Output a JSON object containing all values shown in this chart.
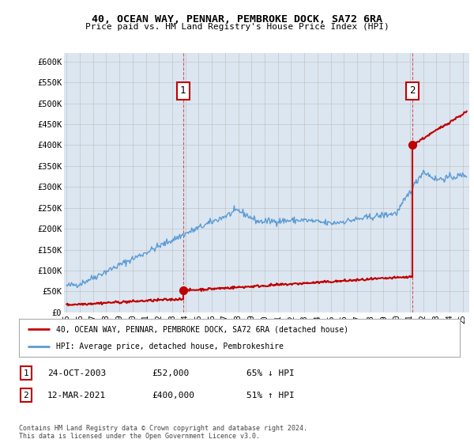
{
  "title_line1": "40, OCEAN WAY, PENNAR, PEMBROKE DOCK, SA72 6RA",
  "title_line2": "Price paid vs. HM Land Registry's House Price Index (HPI)",
  "ylabel_ticks": [
    "£0",
    "£50K",
    "£100K",
    "£150K",
    "£200K",
    "£250K",
    "£300K",
    "£350K",
    "£400K",
    "£450K",
    "£500K",
    "£550K",
    "£600K"
  ],
  "ytick_vals": [
    0,
    50000,
    100000,
    150000,
    200000,
    250000,
    300000,
    350000,
    400000,
    450000,
    500000,
    550000,
    600000
  ],
  "ylim": [
    0,
    620000
  ],
  "xlim_start": 1994.8,
  "xlim_end": 2025.5,
  "hpi_color": "#5b9bd5",
  "price_color": "#c00000",
  "chart_bg": "#dce6f1",
  "marker1_x": 2003.82,
  "marker1_y": 52000,
  "marker2_x": 2021.19,
  "marker2_y": 400000,
  "legend_label1": "40, OCEAN WAY, PENNAR, PEMBROKE DOCK, SA72 6RA (detached house)",
  "legend_label2": "HPI: Average price, detached house, Pembrokeshire",
  "table_row1": [
    "1",
    "24-OCT-2003",
    "£52,000",
    "65% ↓ HPI"
  ],
  "table_row2": [
    "2",
    "12-MAR-2021",
    "£400,000",
    "51% ↑ HPI"
  ],
  "footer": "Contains HM Land Registry data © Crown copyright and database right 2024.\nThis data is licensed under the Open Government Licence v3.0.",
  "background_color": "#ffffff",
  "grid_color": "#bbbbbb"
}
